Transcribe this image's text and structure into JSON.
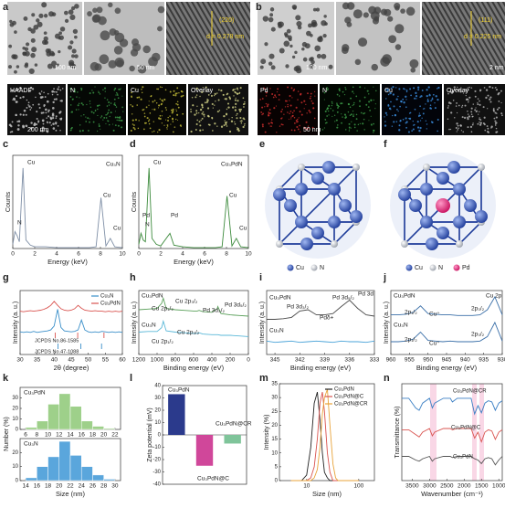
{
  "panel_labels": [
    "a",
    "b",
    "c",
    "d",
    "e",
    "f",
    "g",
    "h",
    "i",
    "j",
    "k",
    "l",
    "m",
    "n"
  ],
  "panel_a": {
    "tem_labels": [
      "100 nm",
      "50 nm",
      "(220)",
      "d = 0.278 nm"
    ],
    "map_labels": [
      "HAADF",
      "N",
      "Cu",
      "Overlay"
    ],
    "map_scale": "200 nm"
  },
  "panel_b": {
    "tem_labels": [
      "100 nm",
      "(111)",
      "d = 0.225 nm",
      "2 nm"
    ],
    "map_labels": [
      "Pd",
      "N",
      "Cu",
      "Overlay"
    ],
    "map_scale": "50 nm"
  },
  "panel_e": {
    "legend": [
      "Cu",
      "N"
    ]
  },
  "panel_f": {
    "legend": [
      "Cu",
      "N",
      "Pd"
    ]
  },
  "chart_data": [
    {
      "type": "line",
      "xlabel": "Energy (keV)",
      "ylabel": "Counts",
      "xlim": [
        0,
        10
      ],
      "xticks": [
        0,
        2,
        4,
        6,
        8,
        10
      ],
      "ylim": [
        0,
        110
      ],
      "x": [
        0,
        0.2,
        0.4,
        0.6,
        0.93,
        1.2,
        1.6,
        2,
        3,
        4,
        5,
        6,
        7,
        7.6,
        8.05,
        8.5,
        8.9,
        9.3,
        10
      ],
      "series": [
        {
          "name": "Cu₃N",
          "color": "#7f8fa6",
          "values": [
            5,
            20,
            15,
            8,
            95,
            10,
            4,
            2,
            2,
            1,
            1,
            1,
            1,
            2,
            60,
            3,
            12,
            2,
            1
          ]
        }
      ],
      "labels": [
        "Cu",
        "Cu",
        "Cu",
        "N",
        "Cu₃N"
      ]
    },
    {
      "type": "line",
      "xlabel": "Energy (keV)",
      "ylabel": "Counts",
      "xlim": [
        0,
        10
      ],
      "xticks": [
        0,
        2,
        4,
        6,
        8,
        10
      ],
      "ylim": [
        0,
        110
      ],
      "x": [
        0,
        0.2,
        0.4,
        0.6,
        0.93,
        1.2,
        1.6,
        2,
        2.84,
        3.2,
        4,
        5,
        6,
        7,
        7.6,
        8.05,
        8.5,
        8.9,
        9.3,
        10
      ],
      "series": [
        {
          "name": "Cu₃PdN",
          "color": "#3d8b3d",
          "values": [
            5,
            18,
            10,
            8,
            95,
            12,
            5,
            3,
            18,
            4,
            2,
            1,
            1,
            1,
            2,
            62,
            3,
            12,
            2,
            1
          ]
        }
      ],
      "labels": [
        "Cu",
        "Pd",
        "N",
        "Pd",
        "Cu",
        "Cu",
        "Cu₃PdN"
      ]
    },
    {
      "type": "line",
      "xlabel": "2θ (degree)",
      "ylabel": "Intensity (a. u.)",
      "xlim": [
        30,
        60
      ],
      "xticks": [
        30,
        35,
        40,
        45,
        50,
        55,
        60
      ],
      "ylim": [
        -30,
        100
      ],
      "legend": "upper right",
      "x": [
        30,
        31,
        32,
        33,
        34,
        35,
        36,
        37,
        38,
        39,
        40,
        41,
        42,
        43,
        44,
        45,
        46,
        47,
        48,
        49,
        50,
        51,
        52,
        53,
        54,
        55,
        56,
        57,
        58,
        59,
        60
      ],
      "series": [
        {
          "name": "Cu₃N",
          "color": "#3a8fc9",
          "values": [
            16,
            15,
            16,
            15,
            17,
            15,
            16,
            17,
            18,
            20,
            28,
            62,
            25,
            18,
            17,
            16,
            17,
            20,
            40,
            20,
            16,
            15,
            16,
            15,
            17,
            16,
            15,
            16,
            15,
            16,
            15
          ]
        },
        {
          "name": "Cu₃PdN",
          "color": "#d9534f",
          "values": [
            58,
            57,
            58,
            59,
            58,
            59,
            60,
            62,
            65,
            70,
            78,
            70,
            63,
            60,
            59,
            60,
            63,
            70,
            64,
            60,
            59,
            58,
            59,
            58,
            58,
            57,
            58,
            57,
            58,
            57,
            58
          ]
        }
      ],
      "references": [
        {
          "name": "JCPDS No.86-1585",
          "color": "#d9534f",
          "positions": [
            40.3,
            46.9,
            54.6
          ]
        },
        {
          "name": "JCPDS No.47-1088",
          "color": "#3a8fc9",
          "positions": [
            41.1,
            47.8,
            53.9
          ]
        }
      ]
    },
    {
      "type": "line",
      "xlabel": "Binding energy (eV)",
      "ylabel": "Intensity (a. u.)",
      "xlim": [
        1200,
        0
      ],
      "xticks": [
        1200,
        1000,
        800,
        600,
        400,
        200,
        0
      ],
      "ylim": [
        0,
        100
      ],
      "x": [
        1200,
        1100,
        1000,
        950,
        932,
        900,
        800,
        700,
        600,
        560,
        540,
        500,
        400,
        340,
        335,
        300,
        200,
        100,
        0
      ],
      "series": [
        {
          "name": "Cu₃PdN",
          "color": "#5aa05a",
          "values": [
            70,
            71,
            72,
            80,
            88,
            72,
            70,
            69,
            68,
            68,
            69,
            67,
            66,
            72,
            75,
            64,
            62,
            61,
            60
          ]
        },
        {
          "name": "Cu₃N",
          "color": "#5bb8d8",
          "values": [
            35,
            36,
            36,
            42,
            52,
            37,
            35,
            34,
            33,
            33,
            34,
            32,
            31,
            31,
            31,
            30,
            30,
            29,
            28
          ]
        }
      ],
      "labels": [
        "Cu₃PdN",
        "Cu 2p₁/₂",
        "Cu 2p₃/₂",
        "Pd 3d₃/₂",
        "Pd 3d₅/₂",
        "Cu₃N",
        "Cu 2p₁/₂",
        "Cu 2p₃/₂"
      ]
    },
    {
      "type": "line",
      "xlabel": "Binding energy (eV)",
      "ylabel": "Intensity (a. u.)",
      "xlim": [
        346,
        333
      ],
      "xticks": [
        345,
        342,
        339,
        336,
        333
      ],
      "ylim": [
        0,
        100
      ],
      "x": [
        346,
        345,
        344,
        343,
        342,
        341,
        340,
        339,
        338,
        337,
        336,
        335,
        334,
        333
      ],
      "series": [
        {
          "name": "Cu₃PdN",
          "color": "#4a4a4a",
          "values": [
            55,
            55,
            56,
            58,
            68,
            70,
            62,
            62,
            64,
            75,
            85,
            72,
            62,
            60
          ]
        },
        {
          "name": "Cu₃N",
          "color": "#4aa3d8",
          "values": [
            21,
            19,
            20,
            21,
            19,
            20,
            21,
            20,
            19,
            21,
            20,
            20,
            19,
            21
          ]
        }
      ],
      "labels": [
        "Cu₃PdN",
        "Pd 3d₃/₂",
        "Pd 3d₅/₂",
        "Pdδ+",
        "Pd 3d",
        "Cu₃N"
      ]
    },
    {
      "type": "line",
      "xlabel": "Binding energy (eV)",
      "ylabel": "Intensity (a. u.)",
      "xlim": [
        960,
        930
      ],
      "xticks": [
        960,
        955,
        950,
        945,
        940,
        935,
        930
      ],
      "ylim": [
        0,
        100
      ],
      "x": [
        960,
        958,
        956,
        954,
        952,
        950,
        948,
        946,
        944,
        942,
        940,
        938,
        936,
        934,
        932,
        930
      ],
      "series": [
        {
          "name": "Cu₃PdN",
          "color": "#3a6fa8",
          "values": [
            62,
            62,
            63,
            66,
            76,
            64,
            63,
            62,
            62,
            61,
            61,
            61,
            62,
            70,
            90,
            62
          ]
        },
        {
          "name": "Cu₃N",
          "color": "#3a6fa8",
          "values": [
            20,
            20,
            21,
            24,
            35,
            22,
            21,
            20,
            21,
            20,
            20,
            20,
            21,
            28,
            50,
            21
          ]
        }
      ],
      "labels": [
        "Cu₃PdN",
        "Cu 2p",
        "2p₁/₂",
        "Cu⁺",
        "2p₃/₂",
        "Cu₃N",
        "2p₁/₂",
        "Cu⁺",
        "2p₃/₂"
      ]
    },
    {
      "type": "histogram",
      "title": "Cu₃PdN",
      "ylabel": "Number (%)",
      "color": "#9ed08a",
      "bins": [
        6,
        8,
        10,
        12,
        14,
        16,
        18,
        20,
        22
      ],
      "counts": [
        2,
        8,
        24,
        34,
        22,
        8,
        3,
        1
      ],
      "xlim": [
        5,
        23
      ],
      "xticks": [
        6,
        8,
        10,
        12,
        14,
        16,
        18,
        20,
        22
      ],
      "ylim": [
        0,
        40
      ],
      "yticks": [
        0,
        10,
        20,
        30
      ]
    },
    {
      "type": "histogram",
      "title": "Cu₃N",
      "xlabel": "Size (nm)",
      "color": "#5aa6dc",
      "bins": [
        14,
        16,
        18,
        20,
        22,
        24,
        26,
        28,
        30
      ],
      "counts": [
        2,
        10,
        17,
        28,
        18,
        10,
        4,
        1
      ],
      "xlim": [
        13,
        31
      ],
      "xticks": [
        14,
        16,
        18,
        20,
        22,
        24,
        26,
        28,
        30
      ],
      "ylim": [
        0,
        30
      ],
      "yticks": [
        0,
        10,
        20
      ]
    },
    {
      "type": "bar",
      "ylabel": "Zeta potential (mV)",
      "categories": [
        "Cu₃PdN",
        "Cu₃PdN@C",
        "Cu₃PdN@CR"
      ],
      "values": [
        33,
        -25,
        -7
      ],
      "colors": [
        "#2b3a8c",
        "#d0479a",
        "#7fc49a"
      ],
      "ylim": [
        -40,
        40
      ],
      "yticks": [
        -40,
        -30,
        -20,
        -10,
        0,
        10,
        20,
        30,
        40
      ]
    },
    {
      "type": "line",
      "xlabel": "Size (nm)",
      "ylabel": "Intensity (%)",
      "xlog": true,
      "xlim": [
        3,
        200
      ],
      "xticks": [
        10,
        100
      ],
      "ylim": [
        0,
        35
      ],
      "yticks": [
        0,
        5,
        10,
        15,
        20,
        25,
        30,
        35
      ],
      "legend": "upper right",
      "x": [
        5,
        8,
        10,
        12,
        14,
        16,
        18,
        20,
        22,
        25,
        28,
        32,
        36,
        40,
        50,
        100
      ],
      "series": [
        {
          "name": "Cu₃PdN",
          "color": "#222222",
          "values": [
            0,
            0,
            2,
            12,
            28,
            32,
            22,
            10,
            3,
            1,
            0,
            0,
            0,
            0,
            0,
            0
          ]
        },
        {
          "name": "Cu₃PdN@C",
          "color": "#d9534f",
          "values": [
            0,
            0,
            0,
            1,
            5,
            15,
            28,
            32,
            25,
            10,
            3,
            0,
            0,
            0,
            0,
            0
          ]
        },
        {
          "name": "Cu₃PdN@CR",
          "color": "#e8a33a",
          "values": [
            0,
            0,
            0,
            0,
            1,
            4,
            12,
            24,
            30,
            33,
            20,
            6,
            1,
            0,
            0,
            0
          ]
        }
      ]
    },
    {
      "type": "line",
      "xlabel": "Wavenumber (cm⁻¹)",
      "ylabel": "Transmittance (%)",
      "xlim": [
        3800,
        900
      ],
      "xticks": [
        3500,
        3000,
        2500,
        2000,
        1500,
        1000
      ],
      "ylim": [
        20,
        100
      ],
      "x": [
        3800,
        3600,
        3400,
        3300,
        3200,
        3000,
        2920,
        2850,
        2600,
        2400,
        2340,
        2200,
        2000,
        1800,
        1700,
        1600,
        1500,
        1400,
        1300,
        1200,
        1100,
        1000,
        900
      ],
      "series": [
        {
          "name": "Cu₃PdN@CR",
          "color": "#3b7fc4",
          "values": [
            88,
            88,
            80,
            78,
            84,
            88,
            80,
            84,
            88,
            88,
            85,
            88,
            88,
            88,
            75,
            82,
            76,
            84,
            86,
            85,
            78,
            84,
            86
          ]
        },
        {
          "name": "Cu₃PdN@C",
          "color": "#d9534f",
          "values": [
            62,
            62,
            58,
            56,
            60,
            63,
            57,
            60,
            63,
            63,
            62,
            63,
            63,
            63,
            55,
            60,
            52,
            60,
            62,
            61,
            54,
            60,
            62
          ]
        },
        {
          "name": "Cu₃PdN",
          "color": "#555555",
          "values": [
            40,
            40,
            37,
            36,
            38,
            40,
            36,
            38,
            40,
            40,
            39,
            40,
            40,
            40,
            38,
            37,
            34,
            38,
            39,
            38,
            33,
            37,
            40
          ]
        }
      ]
    }
  ]
}
